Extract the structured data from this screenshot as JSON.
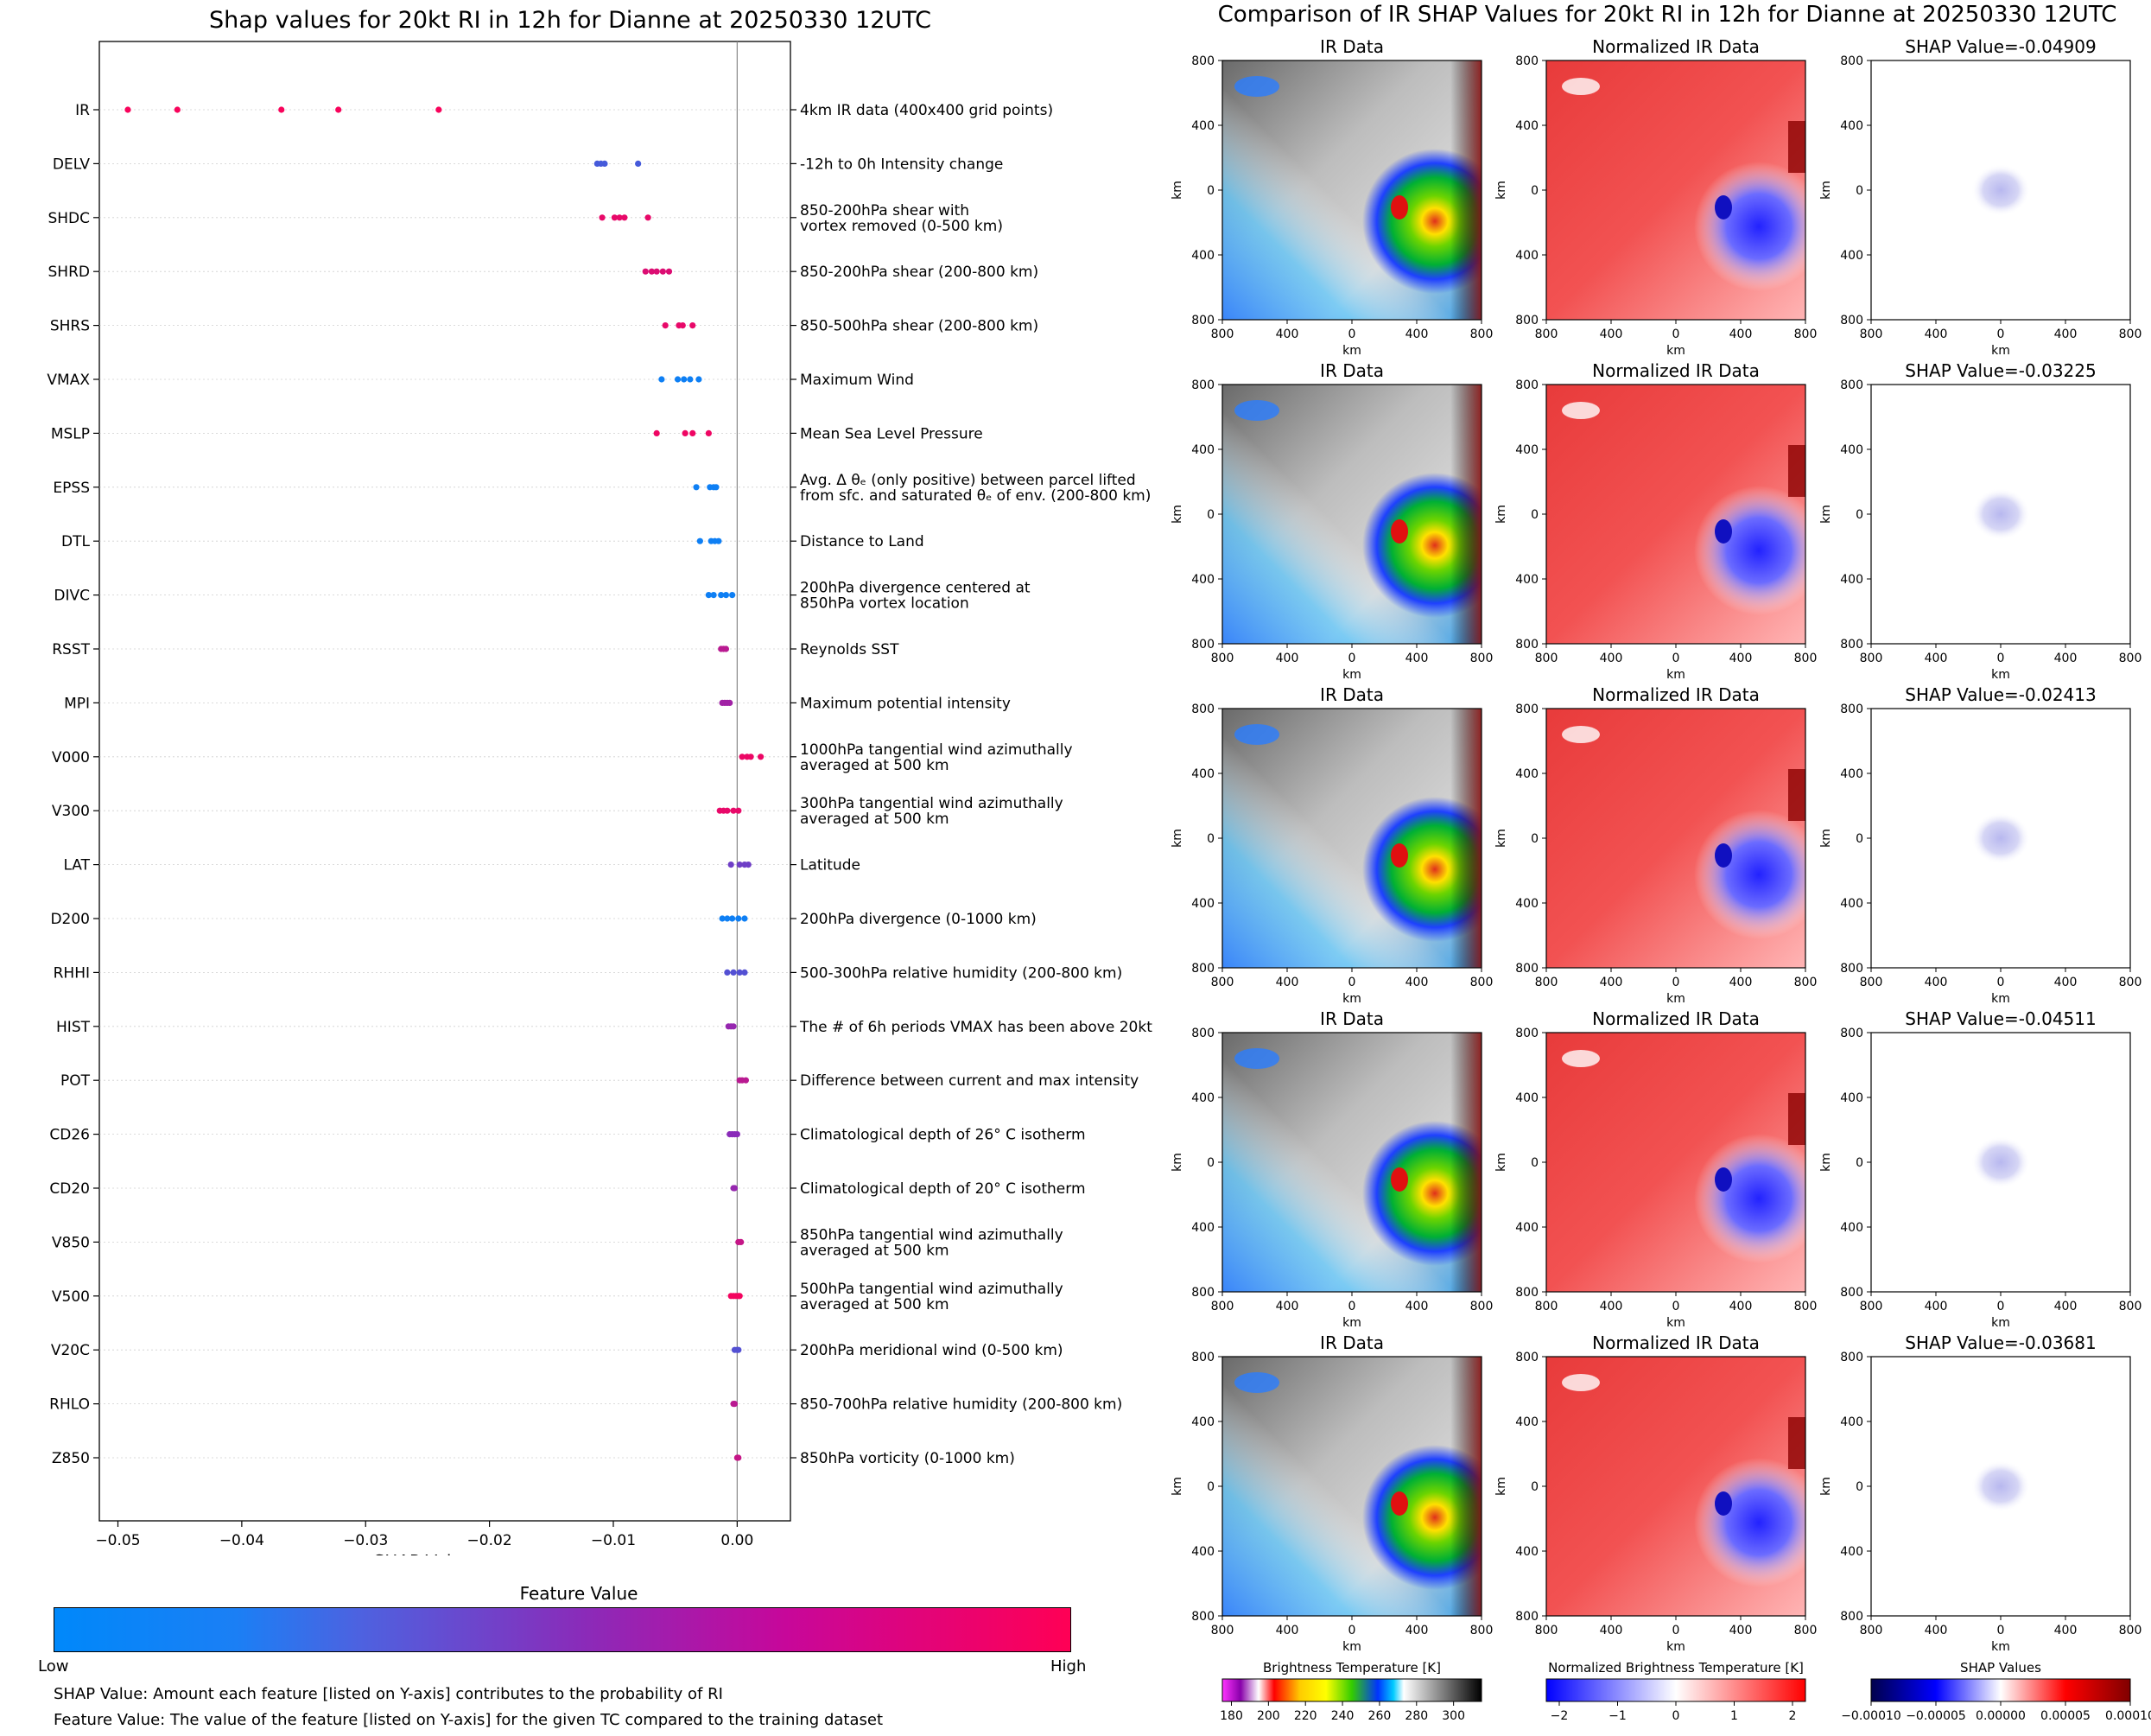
{
  "left_title": "Shap values for 20kt RI in 12h for Dianne at 20250330 12UTC",
  "right_title": "Comparison of IR SHAP Values for 20kt RI in 12h for Dianne at 20250330 12UTC",
  "colors": {
    "low": "#0088fa",
    "mid": "#8a2bb9",
    "high": "#ff0055"
  },
  "chart_data": [
    {
      "type": "scatter",
      "title": "Shap values for 20kt RI in 12h for Dianne at 20250330 12UTC",
      "xlabel": "SHAP Value",
      "xlim": [
        -0.0515,
        0.0043
      ],
      "xticks": [
        -0.05,
        -0.04,
        -0.03,
        -0.02,
        -0.01,
        0.0
      ],
      "xtick_labels": [
        "−0.05",
        "−0.04",
        "−0.03",
        "−0.02",
        "−0.01",
        "0.00"
      ],
      "features": [
        {
          "name": "IR",
          "description": [
            "4km IR data (400x400 grid points)"
          ],
          "values": [
            -0.0492,
            -0.0452,
            -0.0368,
            -0.0322,
            -0.0241
          ],
          "feature_value": 0.97
        },
        {
          "name": "DELV",
          "description": [
            "-12h to 0h Intensity change"
          ],
          "values": [
            -0.0113,
            -0.011,
            -0.0107,
            -0.008
          ],
          "feature_value": 0.25
        },
        {
          "name": "SHDC",
          "description": [
            "850-200hPa shear with",
            "vortex removed (0-500 km)"
          ],
          "values": [
            -0.0109,
            -0.0099,
            -0.0095,
            -0.0091,
            -0.0072
          ],
          "feature_value": 0.9
        },
        {
          "name": "SHRD",
          "description": [
            "850-200hPa shear (200-800 km)"
          ],
          "values": [
            -0.0074,
            -0.0069,
            -0.0065,
            -0.006,
            -0.0055
          ],
          "feature_value": 0.85
        },
        {
          "name": "SHRS",
          "description": [
            "850-500hPa shear (200-800 km)"
          ],
          "values": [
            -0.0058,
            -0.0047,
            -0.0044,
            -0.0036
          ],
          "feature_value": 0.9
        },
        {
          "name": "VMAX",
          "description": [
            "Maximum Wind"
          ],
          "values": [
            -0.0061,
            -0.0048,
            -0.0043,
            -0.0038,
            -0.0031
          ],
          "feature_value": 0.05
        },
        {
          "name": "MSLP",
          "description": [
            "Mean Sea Level Pressure"
          ],
          "values": [
            -0.0065,
            -0.0042,
            -0.0036,
            -0.0023
          ],
          "feature_value": 0.93
        },
        {
          "name": "EPSS",
          "description": [
            "Avg. Δ θₑ (only positive) between parcel lifted",
            "from sfc. and saturated θₑ of env. (200-800 km)"
          ],
          "values": [
            -0.0033,
            -0.0022,
            -0.0019,
            -0.0017
          ],
          "feature_value": 0.05
        },
        {
          "name": "DTL",
          "description": [
            "Distance to Land"
          ],
          "values": [
            -0.003,
            -0.0021,
            -0.0018,
            -0.0015
          ],
          "feature_value": 0.05
        },
        {
          "name": "DIVC",
          "description": [
            "200hPa divergence centered at",
            "850hPa vortex location"
          ],
          "values": [
            -0.0023,
            -0.0019,
            -0.0013,
            -0.0009,
            -0.0004
          ],
          "feature_value": 0.05
        },
        {
          "name": "RSST",
          "description": [
            "Reynolds SST"
          ],
          "values": [
            -0.0013,
            -0.0011,
            -0.0009
          ],
          "feature_value": 0.7
        },
        {
          "name": "MPI",
          "description": [
            "Maximum potential intensity"
          ],
          "values": [
            -0.0012,
            -0.001,
            -0.0008,
            -0.0006
          ],
          "feature_value": 0.6
        },
        {
          "name": "V000",
          "description": [
            "1000hPa tangential wind azimuthally",
            "averaged at 500 km"
          ],
          "values": [
            0.0004,
            0.0008,
            0.0011,
            0.0019
          ],
          "feature_value": 0.92
        },
        {
          "name": "V300",
          "description": [
            "300hPa tangential wind azimuthally",
            "averaged at 500 km"
          ],
          "values": [
            -0.0014,
            -0.0011,
            -0.0008,
            -0.0003,
            0.0001
          ],
          "feature_value": 0.9
        },
        {
          "name": "LAT",
          "description": [
            "Latitude"
          ],
          "values": [
            -0.0005,
            0.0002,
            0.0006,
            0.0009
          ],
          "feature_value": 0.4
        },
        {
          "name": "D200",
          "description": [
            "200hPa divergence (0-1000 km)"
          ],
          "values": [
            -0.0012,
            -0.0008,
            -0.0004,
            0.0001,
            0.0006
          ],
          "feature_value": 0.05
        },
        {
          "name": "RHHI",
          "description": [
            "500-300hPa relative humidity (200-800 km)"
          ],
          "values": [
            -0.0008,
            -0.0003,
            0.0002,
            0.0006
          ],
          "feature_value": 0.3
        },
        {
          "name": "HIST",
          "description": [
            "The # of 6h periods VMAX has been above 20kt"
          ],
          "values": [
            -0.0007,
            -0.0005,
            -0.0003
          ],
          "feature_value": 0.55
        },
        {
          "name": "POT",
          "description": [
            "Difference between current and max intensity"
          ],
          "values": [
            0.0002,
            0.0004,
            0.0007
          ],
          "feature_value": 0.7
        },
        {
          "name": "CD26",
          "description": [
            "Climatological depth of 26° C isotherm"
          ],
          "values": [
            -0.0006,
            -0.0004,
            -0.0002,
            0.0
          ],
          "feature_value": 0.5
        },
        {
          "name": "CD20",
          "description": [
            "Climatological depth of 20° C isotherm"
          ],
          "values": [
            -0.0003,
            -0.0002
          ],
          "feature_value": 0.55
        },
        {
          "name": "V850",
          "description": [
            "850hPa tangential wind azimuthally",
            "averaged at 500 km"
          ],
          "values": [
            0.0001,
            0.0003
          ],
          "feature_value": 0.75
        },
        {
          "name": "V500",
          "description": [
            "500hPa tangential wind azimuthally",
            "averaged at 500 km"
          ],
          "values": [
            -0.0005,
            -0.0003,
            -0.0001,
            0.0001,
            0.0002
          ],
          "feature_value": 0.95
        },
        {
          "name": "V20C",
          "description": [
            "200hPa meridional wind (0-500 km)"
          ],
          "values": [
            -0.0002,
            0.0,
            0.0001
          ],
          "feature_value": 0.3
        },
        {
          "name": "RHLO",
          "description": [
            "850-700hPa relative humidity (200-800 km)"
          ],
          "values": [
            -0.0003,
            -0.0002
          ],
          "feature_value": 0.7
        },
        {
          "name": "Z850",
          "description": [
            "850hPa vorticity (0-1000 km)"
          ],
          "values": [
            0.0,
            0.0001
          ],
          "feature_value": 0.75
        }
      ]
    },
    {
      "type": "heatmap",
      "title": "Comparison of IR SHAP Values for 20kt RI in 12h for Dianne at 20250330 12UTC",
      "column_titles": [
        "IR Data",
        "Normalized IR Data"
      ],
      "shap_titles": [
        "SHAP Value=-0.04909",
        "SHAP Value=-0.03225",
        "SHAP Value=-0.02413",
        "SHAP Value=-0.04511",
        "SHAP Value=-0.03681"
      ],
      "xlabel": "km",
      "ylabel": "km",
      "tick_labels": [
        "800",
        "400",
        "0",
        "400",
        "800"
      ]
    }
  ],
  "feature_colorbar": {
    "title": "Feature Value",
    "low": "Low",
    "high": "High"
  },
  "notes": [
    "SHAP Value: Amount each feature [listed on Y-axis] contributes to the probability of RI",
    "Feature Value: The value of the feature [listed on Y-axis] for the given TC compared to the training dataset"
  ],
  "colorbars": [
    {
      "label": "Brightness Temperature [K]",
      "ticks": [
        "180",
        "200",
        "220",
        "240",
        "260",
        "280",
        "300"
      ]
    },
    {
      "label": "Normalized Brightness Temperature [K]",
      "ticks": [
        "−2",
        "−1",
        "0",
        "1",
        "2"
      ]
    },
    {
      "label": "SHAP Values",
      "ticks": [
        "−0.00010",
        "−0.00005",
        "0.00000",
        "0.00005",
        "0.00010"
      ]
    }
  ]
}
